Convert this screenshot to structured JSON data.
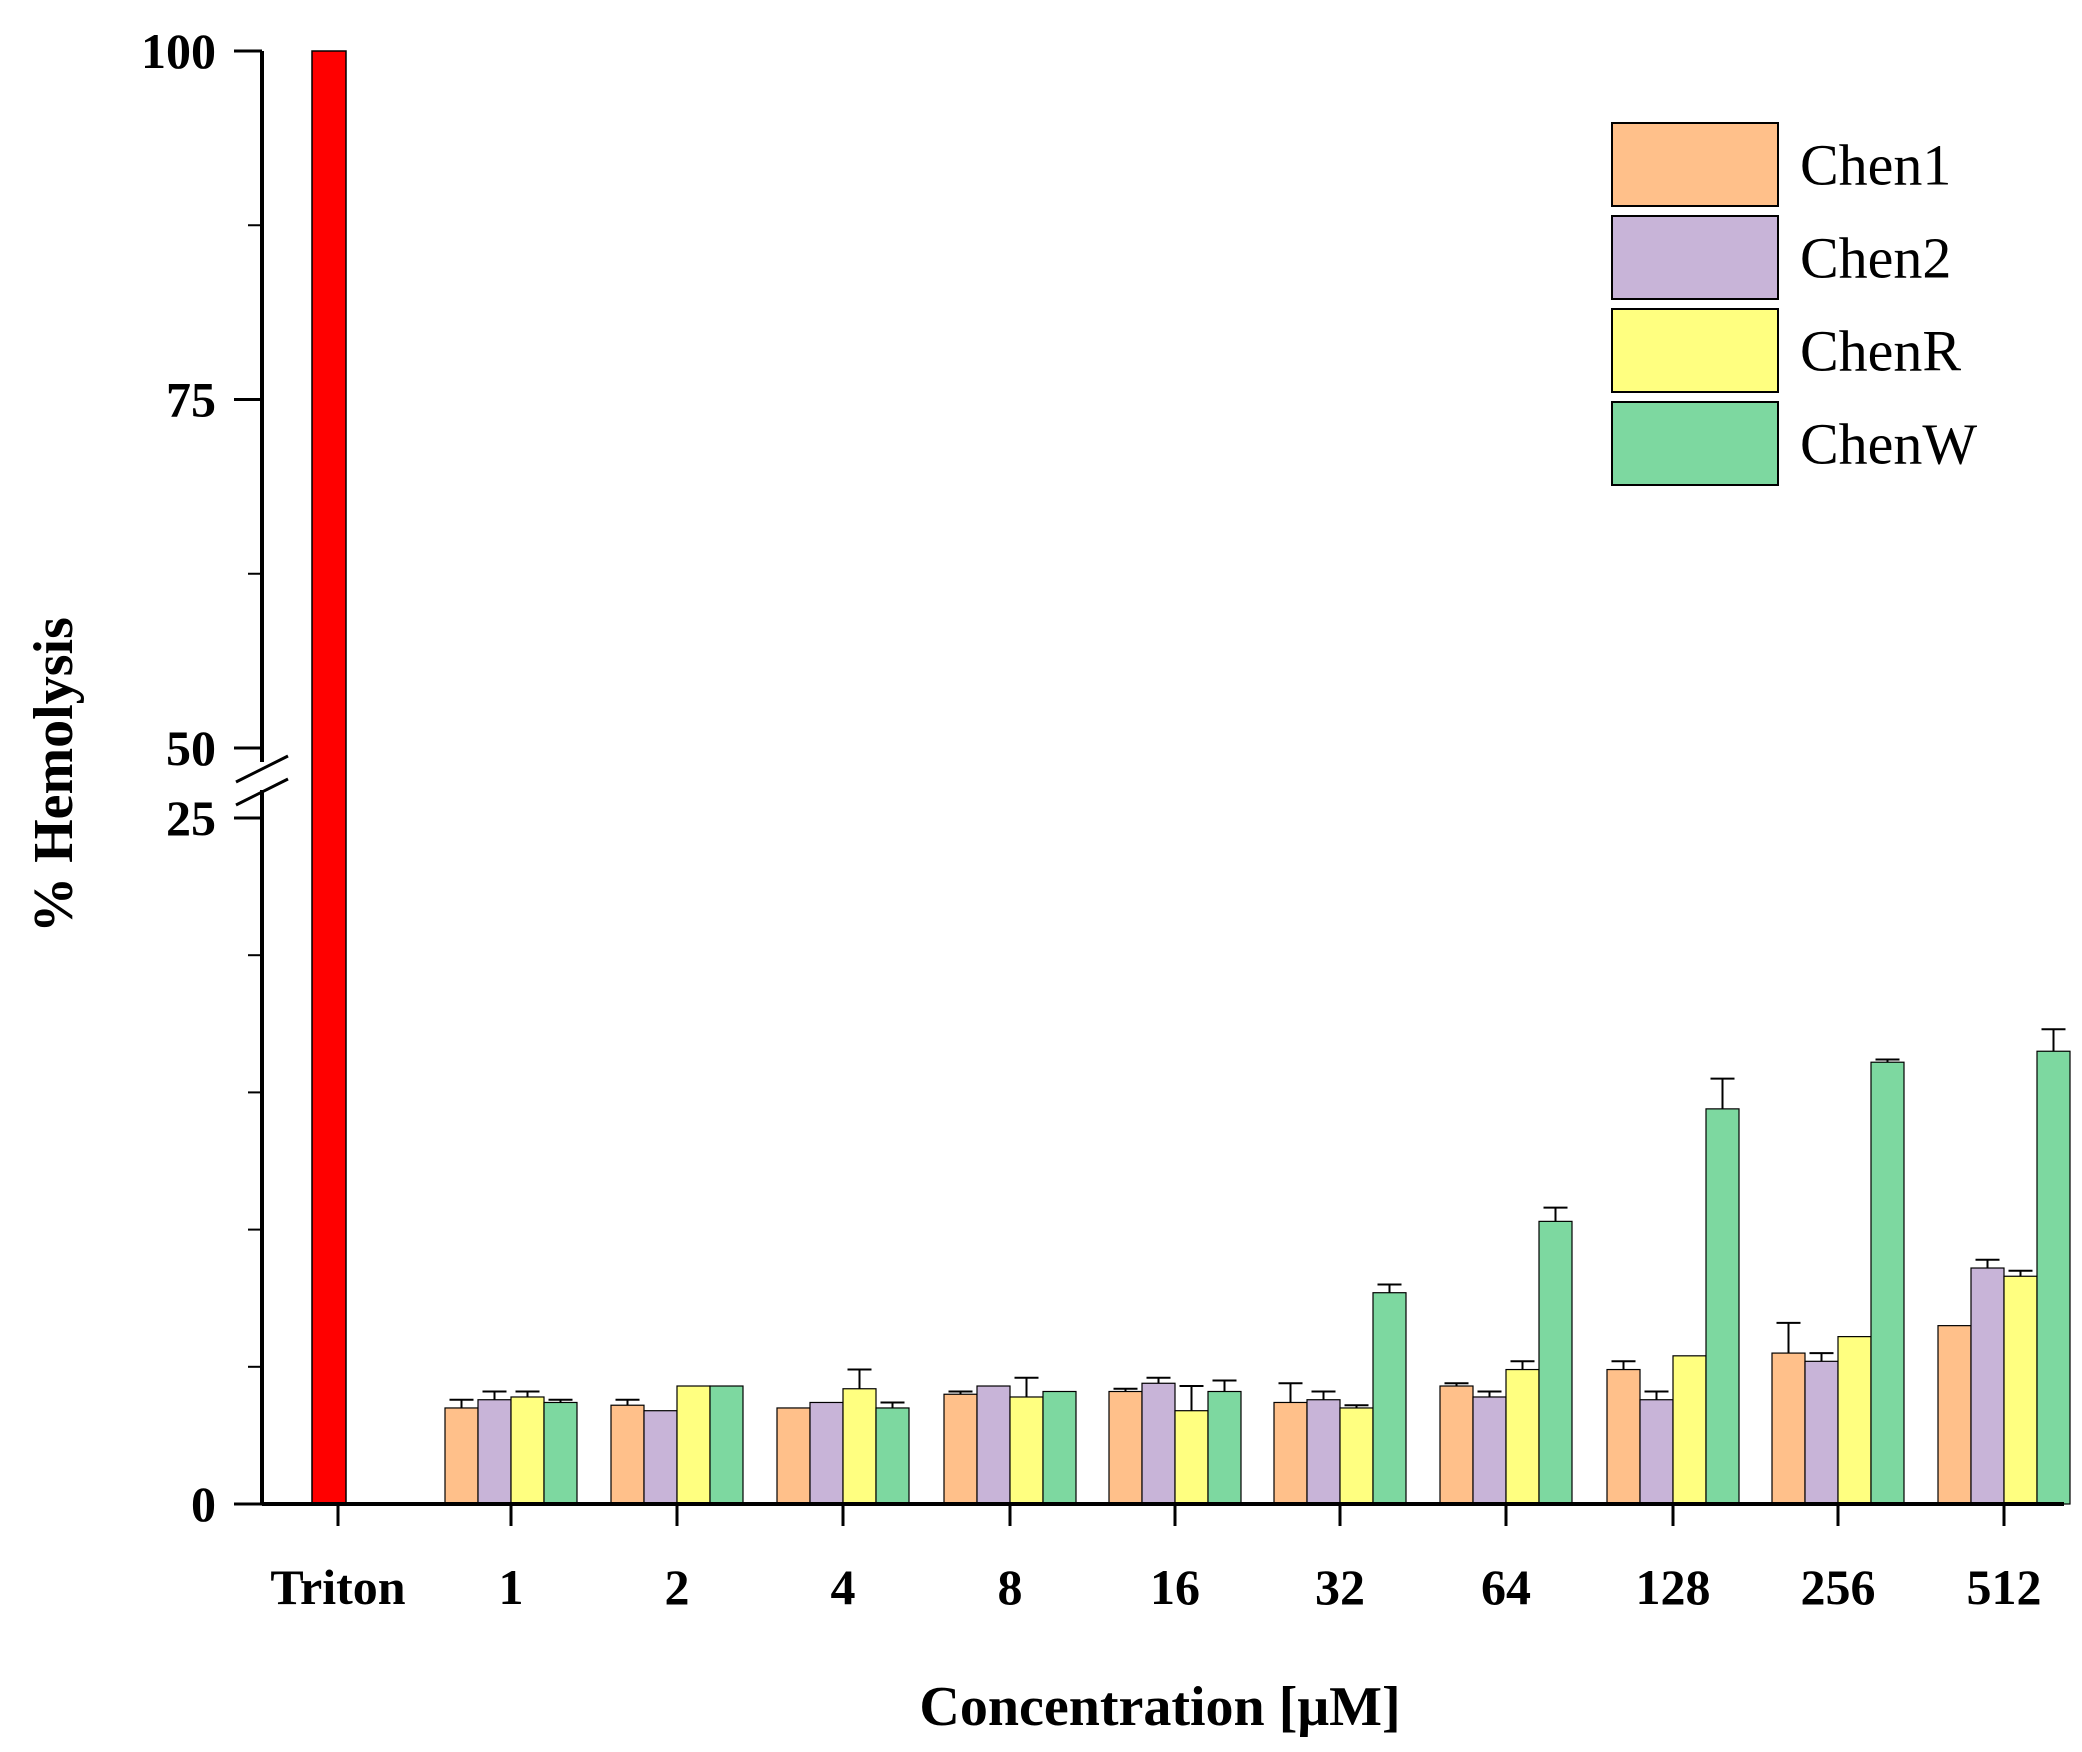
{
  "chart_data": {
    "type": "bar",
    "title": "",
    "xlabel": "Concentration [μM]",
    "ylabel": "% Hemolysis",
    "categories": [
      "Triton",
      "1",
      "2",
      "4",
      "8",
      "16",
      "32",
      "64",
      "128",
      "256",
      "512"
    ],
    "axis_break": {
      "lower": [
        0,
        25
      ],
      "upper": [
        50,
        100
      ]
    },
    "y_ticks": [
      "0",
      "25",
      "50",
      "75",
      "100"
    ],
    "control": {
      "name": "Triton",
      "value": 100,
      "color": "#ff0000"
    },
    "series": [
      {
        "name": "Chen1",
        "color": "#ffc08a",
        "values": [
          null,
          3.5,
          3.6,
          3.5,
          4.0,
          4.1,
          3.7,
          4.3,
          4.9,
          5.5,
          6.5
        ],
        "errors": [
          null,
          0.3,
          0.2,
          0,
          0.1,
          0.1,
          0.7,
          0.1,
          0.3,
          1.1,
          0
        ]
      },
      {
        "name": "Chen2",
        "color": "#c8b4d8",
        "values": [
          null,
          3.8,
          3.4,
          3.7,
          4.3,
          4.4,
          3.8,
          3.9,
          3.8,
          5.2,
          8.6
        ],
        "errors": [
          null,
          0.3,
          0,
          0,
          0,
          0.2,
          0.3,
          0.2,
          0.3,
          0.3,
          0.3
        ]
      },
      {
        "name": "ChenR",
        "color": "#ffff80",
        "values": [
          null,
          3.9,
          4.3,
          4.2,
          3.9,
          3.4,
          3.5,
          4.9,
          5.4,
          6.1,
          8.3
        ],
        "errors": [
          null,
          0.2,
          0,
          0.7,
          0.7,
          0.9,
          0.1,
          0.3,
          0,
          0,
          0.2
        ]
      },
      {
        "name": "ChenW",
        "color": "#7dd8a0",
        "values": [
          null,
          3.7,
          4.3,
          3.5,
          4.1,
          4.1,
          7.7,
          10.3,
          14.4,
          16.1,
          16.5
        ],
        "errors": [
          null,
          0.1,
          0,
          0.2,
          0,
          0.4,
          0.3,
          0.5,
          1.1,
          0.1,
          0.8
        ]
      }
    ]
  }
}
